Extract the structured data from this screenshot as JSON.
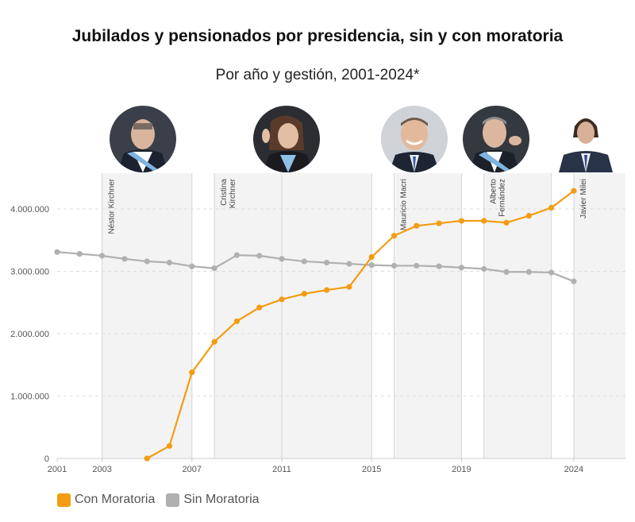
{
  "header": {
    "title": "Jubilados y pensionados por presidencia, sin y con moratoria",
    "subtitle": "Por año y gestión, 2001-2024*"
  },
  "presidents": [
    {
      "name": "Néstor Kirchner",
      "start": 2003,
      "end": 2007,
      "shaded": true
    },
    {
      "name": "Cristina Kirchner",
      "start": 2007.5,
      "end": 2015,
      "shaded": true
    },
    {
      "name": "Mauricio Macri",
      "start": 2016,
      "end": 2019,
      "shaded": true
    },
    {
      "name": "Alberto Fernández",
      "start": 2020,
      "end": 2023,
      "shaded": true
    },
    {
      "name": "Javier Milei",
      "start": 2024,
      "end": 2026.3,
      "shaded": true
    }
  ],
  "colors": {
    "con_moratoria": "#f39c12",
    "sin_moratoria": "#b0b0b0",
    "band": "#f3f3f3",
    "divider": "#d6d6d6"
  },
  "legend": {
    "con_label": "Con Moratoria",
    "sin_label": "Sin Moratoria"
  },
  "chart_data": {
    "type": "line",
    "x_ticks": [
      "2001",
      "2003",
      "2007",
      "2011",
      "2015",
      "2019",
      "2024"
    ],
    "y_ticks": [
      "0",
      "1.000.000",
      "2.000.000",
      "3.000.000",
      "4.000.000"
    ],
    "xlim": [
      2001,
      2026.3
    ],
    "ylim": [
      0,
      4500000
    ],
    "grid": true,
    "legend_position": "bottom-left",
    "series": [
      {
        "name": "Con Moratoria",
        "x": [
          2005,
          2006,
          2007,
          2008,
          2009,
          2010,
          2011,
          2012,
          2013,
          2014,
          2015,
          2016,
          2017,
          2018,
          2019,
          2020,
          2021,
          2022,
          2023,
          2024
        ],
        "values": [
          0,
          200000,
          1380000,
          1870000,
          2200000,
          2420000,
          2550000,
          2640000,
          2700000,
          2750000,
          3230000,
          3570000,
          3730000,
          3770000,
          3810000,
          3810000,
          3780000,
          3890000,
          4020000,
          4290000
        ]
      },
      {
        "name": "Sin Moratoria",
        "x": [
          2001,
          2002,
          2003,
          2004,
          2005,
          2006,
          2007,
          2008,
          2009,
          2010,
          2011,
          2012,
          2013,
          2014,
          2015,
          2016,
          2017,
          2018,
          2019,
          2020,
          2021,
          2022,
          2023,
          2024
        ],
        "values": [
          3310000,
          3280000,
          3250000,
          3200000,
          3160000,
          3140000,
          3080000,
          3050000,
          3260000,
          3250000,
          3200000,
          3160000,
          3140000,
          3120000,
          3100000,
          3090000,
          3090000,
          3080000,
          3060000,
          3040000,
          2990000,
          2990000,
          2980000,
          2840000
        ]
      }
    ]
  }
}
